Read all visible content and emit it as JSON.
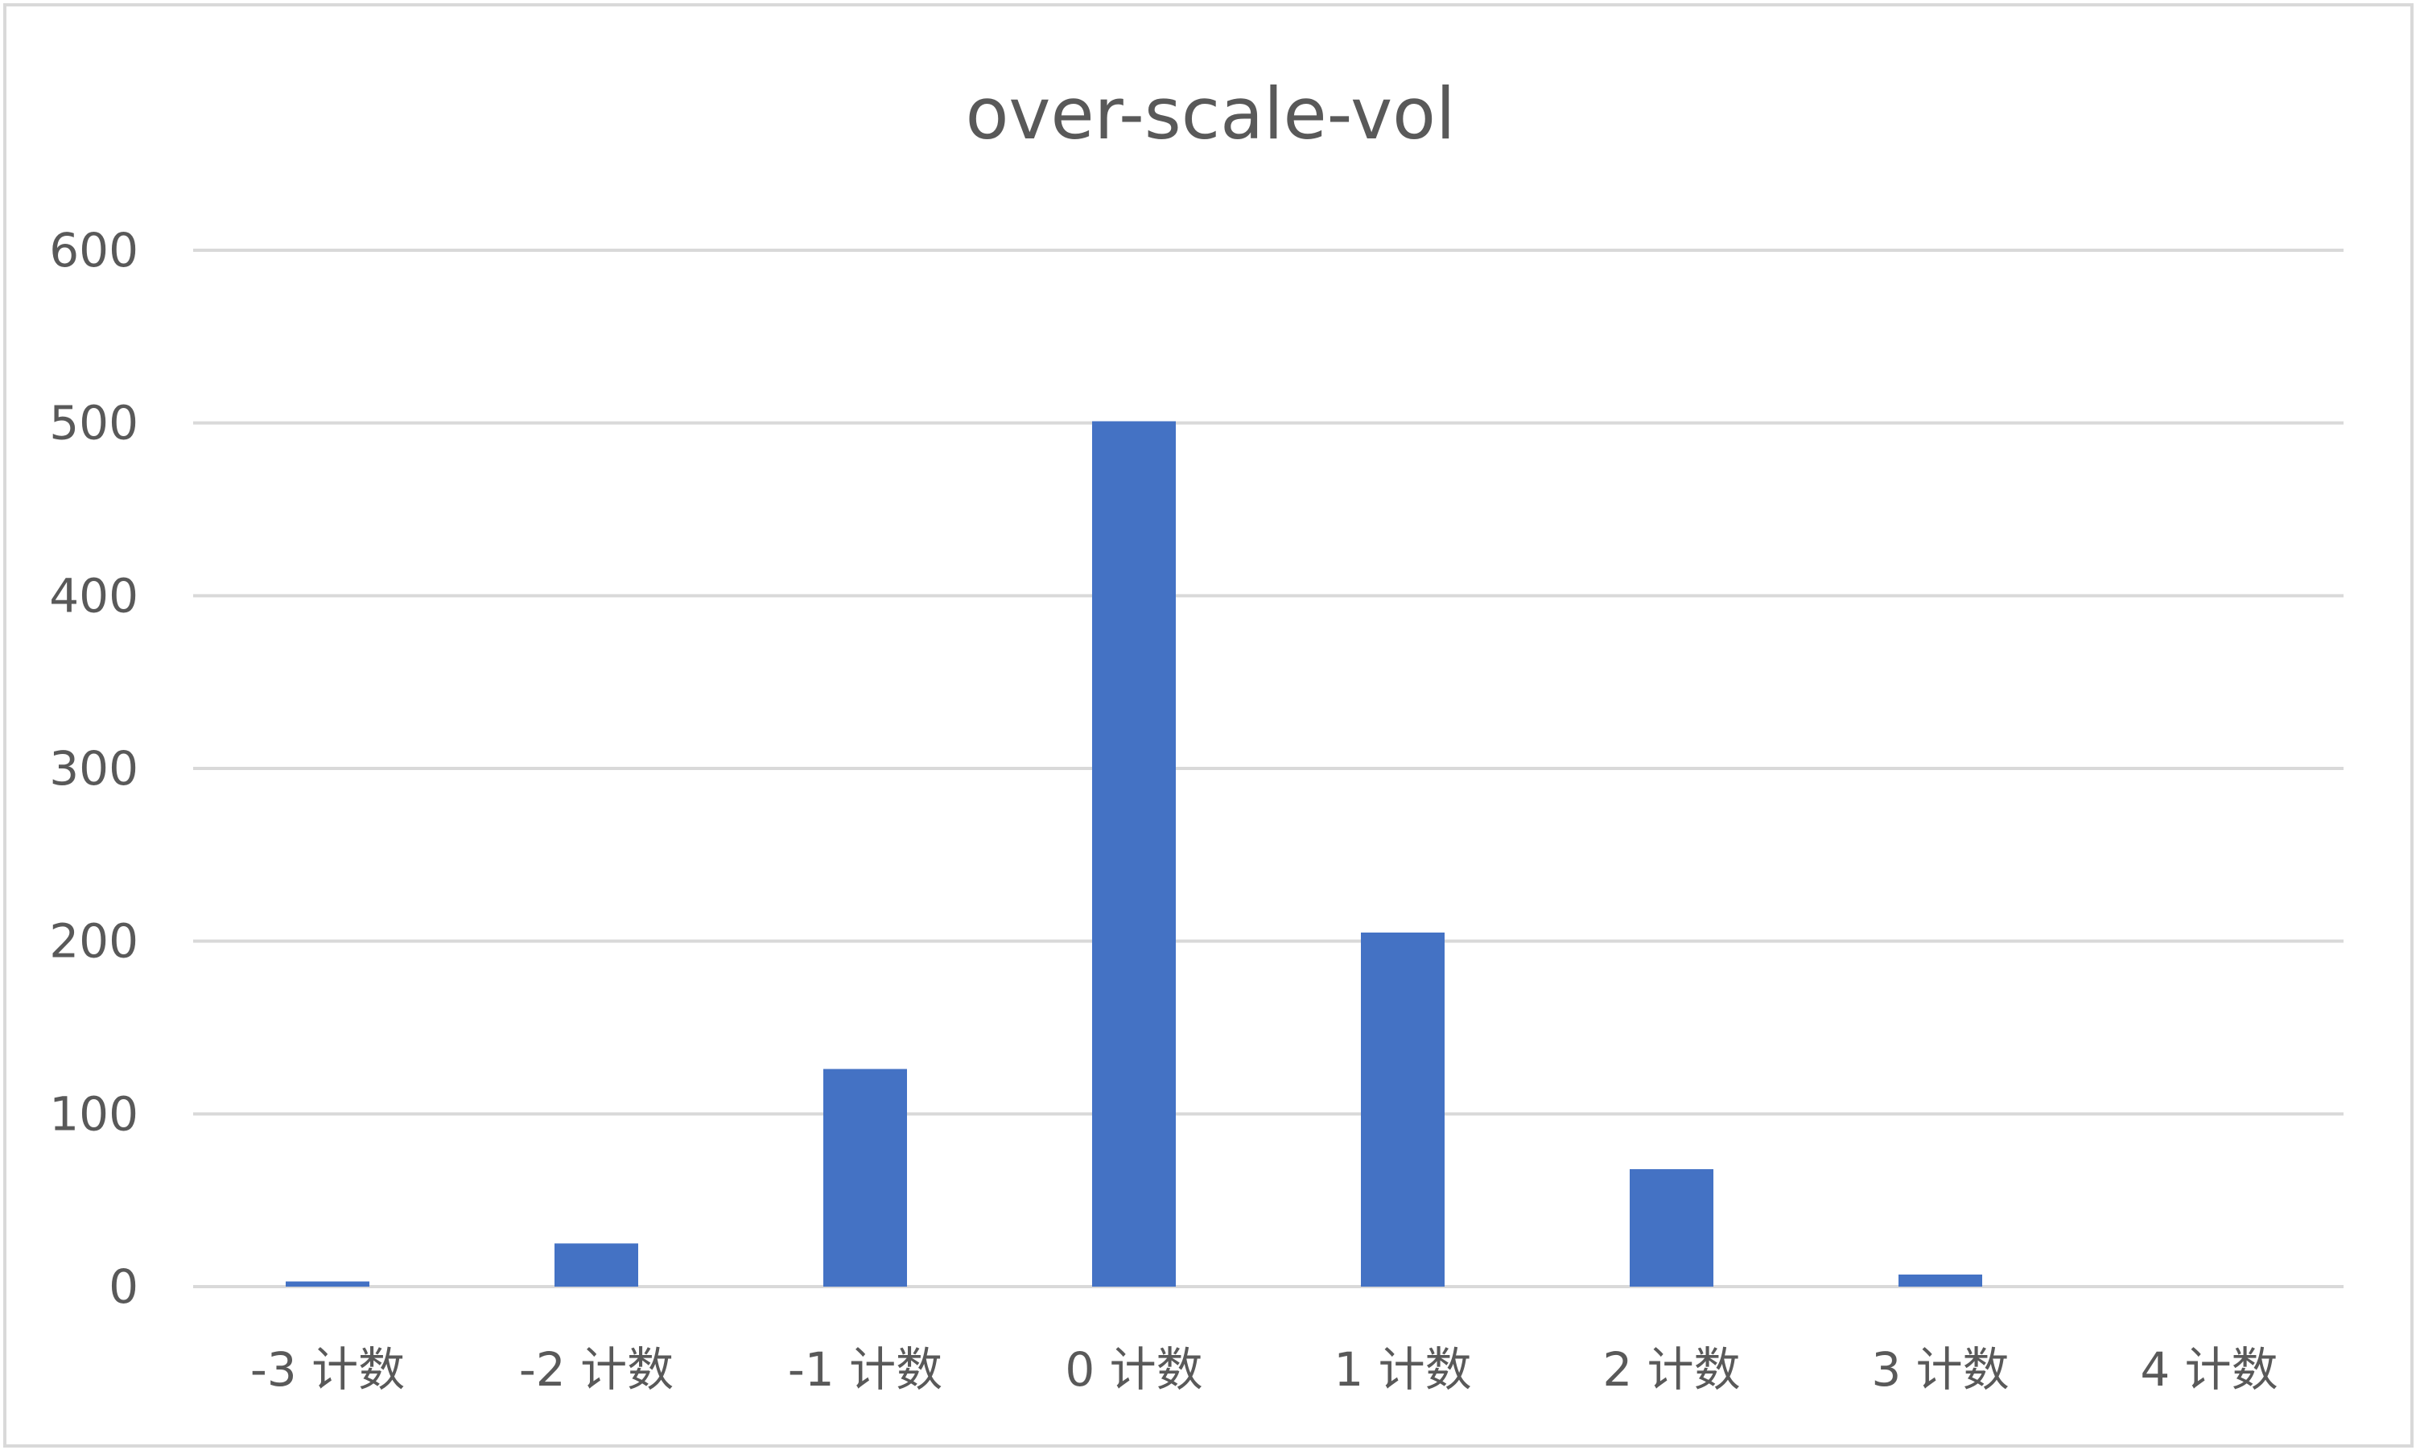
{
  "chart_data": {
    "type": "bar",
    "title": "over-scale-vol",
    "categories": [
      "-3 计数",
      "-2 计数",
      "-1 计数",
      "0 计数",
      "1 计数",
      "2 计数",
      "3 计数",
      "4 计数"
    ],
    "values": [
      3,
      25,
      126,
      501,
      205,
      68,
      7,
      0
    ],
    "ylim": [
      0,
      600
    ],
    "yticks": [
      0,
      100,
      200,
      300,
      400,
      500,
      600
    ],
    "grid": true,
    "bar_color": "#4472C4"
  }
}
